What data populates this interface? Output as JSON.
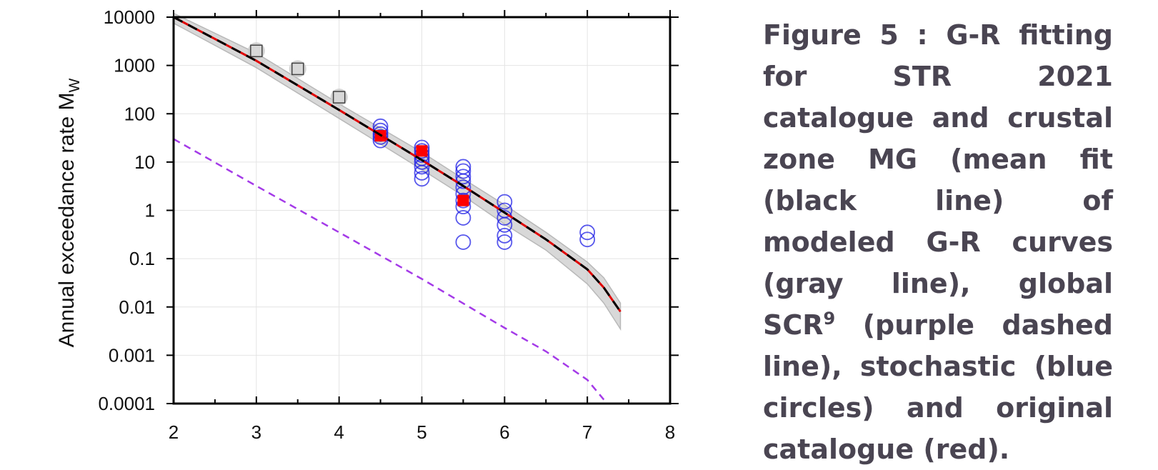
{
  "caption": {
    "part1": "Figure 5 : G-R fitting for STR 2021 catalogue and crustal zone MG (mean fit (black line) of modeled G-R curves (gray line), global SCR",
    "superscript": "9",
    "part2": " (purple dashed line), stochastic (blue circles) and original catalogue (red)."
  },
  "chart_data": {
    "type": "scatter",
    "title": "",
    "xlabel": "",
    "ylabel": "Annual exceedance rate M",
    "ylabel_subscript": "W",
    "xlim": [
      2,
      8
    ],
    "ylim": [
      0.0001,
      10000
    ],
    "yscale": "log",
    "grid": true,
    "x_ticks": [
      "2",
      "3",
      "4",
      "5",
      "6",
      "7",
      "8"
    ],
    "y_ticks": [
      "10000",
      "1000",
      "100",
      "10",
      "1",
      "0.1",
      "0.01",
      "0.001",
      "0.0001"
    ],
    "colors": {
      "modeled": "#b8b8b8",
      "mean": "#000000",
      "catalogue_fit": "#e00000",
      "scr": "#a43ae8",
      "stochastic": "#1f1fe6",
      "original": "#ff0000",
      "excluded": "#c8c8c8"
    },
    "series": [
      {
        "kind": "band",
        "x": [
          2.0,
          3.0,
          4.0,
          5.0,
          5.5,
          6.0,
          6.5,
          7.0,
          7.2,
          7.4
        ],
        "low": [
          7500,
          900,
          80,
          7,
          2.0,
          0.52,
          0.15,
          0.03,
          0.012,
          0.0035
        ],
        "high": [
          12000,
          1800,
          160,
          16,
          4.5,
          1.3,
          0.35,
          0.085,
          0.04,
          0.012
        ]
      },
      {
        "kind": "line",
        "style": "dashed",
        "x": [
          2.0,
          3.0,
          4.0,
          5.0,
          5.5,
          6.0,
          6.5,
          7.0,
          7.2,
          7.4
        ],
        "y": [
          10000,
          1250,
          120,
          11,
          3.2,
          0.9,
          0.25,
          0.06,
          0.025,
          0.008
        ]
      },
      {
        "kind": "line",
        "style": "dashed",
        "x": [
          2.0,
          3.0,
          4.0,
          5.0,
          6.0,
          6.5,
          7.0,
          7.2
        ],
        "y": [
          30,
          3.2,
          0.35,
          0.038,
          0.0037,
          0.0012,
          0.00031,
          0.00012
        ]
      },
      {
        "kind": "points",
        "x": [
          4.5,
          4.5,
          4.5,
          4.5,
          4.5,
          5.0,
          5.0,
          5.0,
          5.0,
          5.0,
          5.0,
          5.0,
          5.0,
          5.5,
          5.5,
          5.5,
          5.5,
          5.5,
          5.5,
          5.5,
          5.5,
          5.5,
          5.5,
          6.0,
          6.0,
          6.0,
          6.0,
          6.0,
          6.0,
          7.0,
          7.0
        ],
        "y": [
          28,
          33,
          38,
          45,
          55,
          4.5,
          6,
          8,
          10,
          12,
          14,
          17,
          20,
          0.22,
          0.7,
          1.2,
          1.6,
          2.2,
          3,
          4,
          5,
          6.5,
          8,
          0.22,
          0.3,
          0.5,
          0.7,
          1.0,
          1.5,
          0.25,
          0.35
        ]
      },
      {
        "kind": "points",
        "x": [
          4.5,
          5.0,
          5.5
        ],
        "y": [
          35,
          17,
          1.6
        ]
      },
      {
        "kind": "points",
        "x": [
          3.0,
          3.5,
          4.0
        ],
        "y": [
          2000,
          850,
          220
        ]
      }
    ]
  }
}
